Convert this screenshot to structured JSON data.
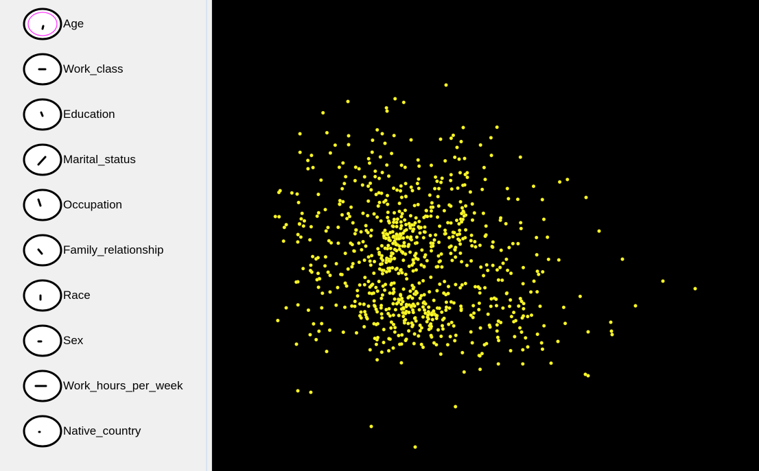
{
  "colors": {
    "plot_background": "#000000",
    "point_color": "#ffff33",
    "point_stroke": "#d0c800",
    "dial_face": "#ffffff",
    "dial_ring": "#000000",
    "selected_ring": "#ff33ff"
  },
  "dials": [
    {
      "label": "Age",
      "selected": true,
      "indicator": "short-tick",
      "icon": "dial-icon"
    },
    {
      "label": "Work_class",
      "selected": false,
      "indicator": "horizontal-dash",
      "icon": "dial-icon"
    },
    {
      "label": "Education",
      "selected": false,
      "indicator": "short-diagonal",
      "icon": "dial-icon"
    },
    {
      "label": "Marital_status",
      "selected": false,
      "indicator": "long-diagonal",
      "icon": "dial-icon"
    },
    {
      "label": "Occupation",
      "selected": false,
      "indicator": "steep-line",
      "icon": "dial-icon"
    },
    {
      "label": "Family_relationship",
      "selected": false,
      "indicator": "diagonal-down",
      "icon": "dial-icon"
    },
    {
      "label": "Race",
      "selected": false,
      "indicator": "vertical-tick",
      "icon": "dial-icon"
    },
    {
      "label": "Sex",
      "selected": false,
      "indicator": "small-dash",
      "icon": "dial-icon"
    },
    {
      "label": "Work_hours_per_week",
      "selected": false,
      "indicator": "long-horizontal",
      "icon": "dial-icon"
    },
    {
      "label": "Native_country",
      "selected": false,
      "indicator": "dot",
      "icon": "dial-icon"
    }
  ],
  "scatter": {
    "point_count": 900,
    "point_shape": "circle"
  }
}
